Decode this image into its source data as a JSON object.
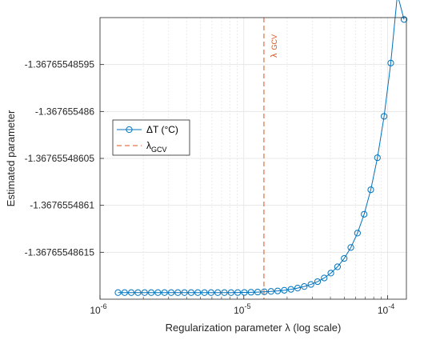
{
  "chart_data": {
    "type": "line",
    "title": "",
    "xlabel": "Regularization parameter λ (log scale)",
    "ylabel": "Estimated parameter",
    "xscale": "log",
    "xlim": [
      1e-06,
      0.000135
    ],
    "ylim": [
      -1.3676554862,
      -1.3676554859
    ],
    "grid": true,
    "minor_grid_x": true,
    "legend_location": "west",
    "x_ticks": [
      {
        "value": 1e-06,
        "base": "10",
        "exp": "-6"
      },
      {
        "value": 1e-05,
        "base": "10",
        "exp": "-5"
      },
      {
        "value": 0.0001,
        "base": "10",
        "exp": "-4"
      }
    ],
    "y_ticks": [
      {
        "value": -1.36765548595,
        "label": "-1.36765548595"
      },
      {
        "value": -1.367655486,
        "label": "-1.367655486"
      },
      {
        "value": -1.36765548605,
        "label": "-1.36765548605"
      },
      {
        "value": -1.3676554861,
        "label": "-1.3676554861"
      },
      {
        "value": -1.36765548615,
        "label": "-1.36765548615"
      }
    ],
    "series": [
      {
        "name": "ΔT (°C)",
        "color": "#0072BD",
        "marker": "circle",
        "x": [
          1.334e-06,
          1.483e-06,
          1.65e-06,
          1.836e-06,
          2.042e-06,
          2.271e-06,
          2.527e-06,
          2.81e-06,
          3.126e-06,
          3.478e-06,
          3.868e-06,
          4.303e-06,
          4.787e-06,
          5.325e-06,
          5.923e-06,
          6.589e-06,
          7.329e-06,
          8.153e-06,
          9.069e-06,
          1.009e-05,
          1.122e-05,
          1.248e-05,
          1.389e-05,
          1.545e-05,
          1.718e-05,
          1.911e-05,
          2.126e-05,
          2.365e-05,
          2.631e-05,
          2.927e-05,
          3.256e-05,
          3.622e-05,
          4.029e-05,
          4.481e-05,
          4.985e-05,
          5.546e-05,
          6.169e-05,
          6.862e-05,
          7.633e-05,
          8.491e-05,
          9.445e-05,
          0.0001051,
          0.0001169,
          0.00013
        ],
        "values": [
          -1.367655486193,
          -1.367655486193,
          -1.367655486193,
          -1.367655486193,
          -1.367655486193,
          -1.367655486193,
          -1.367655486193,
          -1.367655486193,
          -1.367655486193,
          -1.367655486193,
          -1.367655486193,
          -1.367655486193,
          -1.367655486193,
          -1.367655486193,
          -1.367655486193,
          -1.367655486193,
          -1.367655486193,
          -1.367655486193,
          -1.3676554861929,
          -1.3676554861928,
          -1.3676554861926,
          -1.3676554861924,
          -1.3676554861921,
          -1.3676554861917,
          -1.3676554861912,
          -1.3676554861905,
          -1.3676554861895,
          -1.3676554861882,
          -1.3676554861865,
          -1.3676554861843,
          -1.3676554861813,
          -1.3676554861774,
          -1.3676554861722,
          -1.3676554861655,
          -1.3676554861566,
          -1.3676554861449,
          -1.3676554861296,
          -1.3676554861095,
          -1.3676554860834,
          -1.3676554860493,
          -1.3676554860052,
          -1.3676554859484,
          -1.3676554858752,
          -1.367655485902
        ]
      },
      {
        "name": "GCV",
        "name_prefix": "λ",
        "color": "#D95319",
        "style": "dashed-vertical",
        "x": 1.38e-05,
        "annotation": {
          "text": "λ",
          "sub": "GCV"
        }
      }
    ]
  }
}
